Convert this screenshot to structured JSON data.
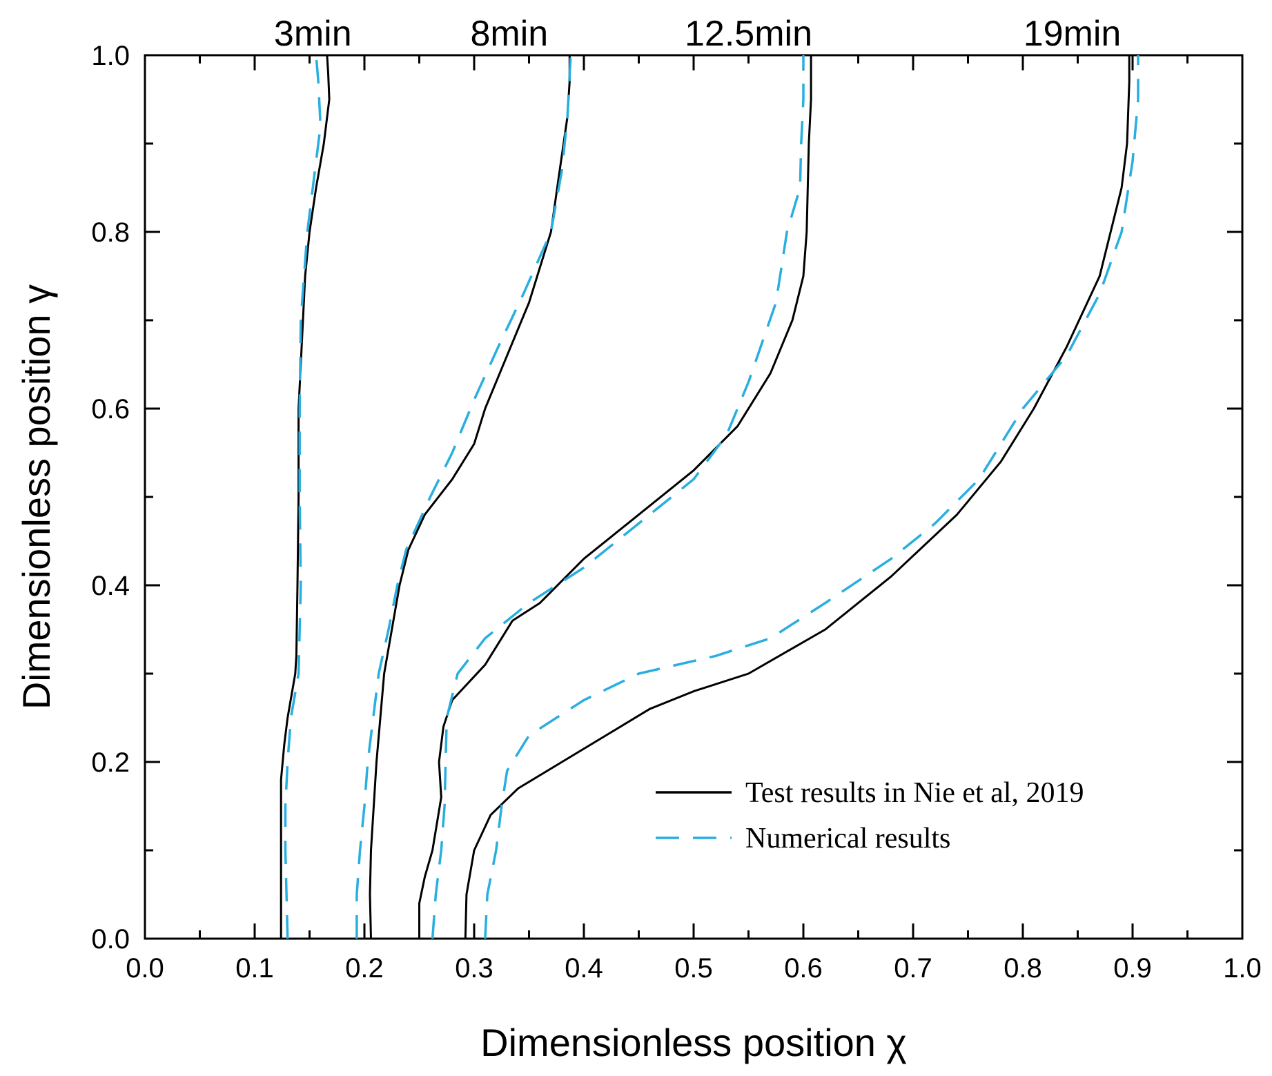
{
  "chart_data": {
    "type": "line",
    "xlabel": "Dimensionless position χ",
    "ylabel": "Dimensionless position γ",
    "xlim": [
      0.0,
      1.0
    ],
    "ylim": [
      0.0,
      1.0
    ],
    "xticks": [
      "0.0",
      "0.1",
      "0.2",
      "0.3",
      "0.4",
      "0.5",
      "0.6",
      "0.7",
      "0.8",
      "0.9",
      "1.0"
    ],
    "yticks": [
      "0.0",
      "0.2",
      "0.4",
      "0.6",
      "0.8",
      "1.0"
    ],
    "grid": false,
    "legend_position": "bottom-right",
    "legend": [
      {
        "label": "Test results in Nie et al, 2019",
        "color": "#000000",
        "style": "solid"
      },
      {
        "label": "Numerical results",
        "color": "#29aee0",
        "style": "dashed"
      }
    ],
    "time_labels": [
      {
        "text": "3min",
        "x": 0.153
      },
      {
        "text": "8min",
        "x": 0.332
      },
      {
        "text": "12.5min",
        "x": 0.55
      },
      {
        "text": "19min",
        "x": 0.845
      }
    ],
    "series": [
      {
        "group": "Test results in Nie et al, 2019",
        "time": "3min",
        "color": "#000000",
        "style": "solid",
        "points": [
          [
            0.124,
            0.0
          ],
          [
            0.124,
            0.1
          ],
          [
            0.124,
            0.18
          ],
          [
            0.127,
            0.22
          ],
          [
            0.13,
            0.25
          ],
          [
            0.137,
            0.3
          ],
          [
            0.138,
            0.32
          ],
          [
            0.139,
            0.4
          ],
          [
            0.14,
            0.5
          ],
          [
            0.14,
            0.6
          ],
          [
            0.142,
            0.65
          ],
          [
            0.146,
            0.75
          ],
          [
            0.15,
            0.8
          ],
          [
            0.156,
            0.85
          ],
          [
            0.163,
            0.9
          ],
          [
            0.168,
            0.95
          ],
          [
            0.167,
            0.98
          ],
          [
            0.166,
            1.0
          ]
        ]
      },
      {
        "group": "Numerical results",
        "time": "3min",
        "color": "#29aee0",
        "style": "dashed",
        "points": [
          [
            0.13,
            0.0
          ],
          [
            0.129,
            0.05
          ],
          [
            0.128,
            0.1
          ],
          [
            0.128,
            0.15
          ],
          [
            0.13,
            0.2
          ],
          [
            0.133,
            0.25
          ],
          [
            0.14,
            0.3
          ],
          [
            0.142,
            0.4
          ],
          [
            0.141,
            0.5
          ],
          [
            0.141,
            0.6
          ],
          [
            0.142,
            0.7
          ],
          [
            0.145,
            0.75
          ],
          [
            0.148,
            0.8
          ],
          [
            0.155,
            0.87
          ],
          [
            0.16,
            0.92
          ],
          [
            0.158,
            0.97
          ],
          [
            0.156,
            1.0
          ]
        ]
      },
      {
        "group": "Test results in Nie et al, 2019",
        "time": "8min",
        "color": "#000000",
        "style": "solid",
        "points": [
          [
            0.206,
            0.0
          ],
          [
            0.205,
            0.05
          ],
          [
            0.206,
            0.1
          ],
          [
            0.211,
            0.2
          ],
          [
            0.218,
            0.3
          ],
          [
            0.232,
            0.4
          ],
          [
            0.24,
            0.44
          ],
          [
            0.255,
            0.48
          ],
          [
            0.28,
            0.52
          ],
          [
            0.3,
            0.56
          ],
          [
            0.31,
            0.6
          ],
          [
            0.33,
            0.66
          ],
          [
            0.35,
            0.72
          ],
          [
            0.37,
            0.8
          ],
          [
            0.378,
            0.87
          ],
          [
            0.385,
            0.93
          ],
          [
            0.387,
            0.97
          ],
          [
            0.387,
            1.0
          ]
        ]
      },
      {
        "group": "Numerical results",
        "time": "8min",
        "color": "#29aee0",
        "style": "dashed",
        "points": [
          [
            0.193,
            0.0
          ],
          [
            0.193,
            0.05
          ],
          [
            0.196,
            0.1
          ],
          [
            0.2,
            0.15
          ],
          [
            0.203,
            0.2
          ],
          [
            0.213,
            0.3
          ],
          [
            0.222,
            0.35
          ],
          [
            0.23,
            0.4
          ],
          [
            0.238,
            0.44
          ],
          [
            0.26,
            0.5
          ],
          [
            0.28,
            0.55
          ],
          [
            0.3,
            0.61
          ],
          [
            0.322,
            0.67
          ],
          [
            0.345,
            0.73
          ],
          [
            0.37,
            0.8
          ],
          [
            0.38,
            0.87
          ],
          [
            0.385,
            0.93
          ],
          [
            0.388,
            1.0
          ]
        ]
      },
      {
        "group": "Test results in Nie et al, 2019",
        "time": "12.5min",
        "color": "#000000",
        "style": "solid",
        "points": [
          [
            0.25,
            0.0
          ],
          [
            0.25,
            0.04
          ],
          [
            0.255,
            0.07
          ],
          [
            0.262,
            0.1
          ],
          [
            0.27,
            0.16
          ],
          [
            0.268,
            0.2
          ],
          [
            0.272,
            0.24
          ],
          [
            0.28,
            0.27
          ],
          [
            0.31,
            0.31
          ],
          [
            0.335,
            0.36
          ],
          [
            0.36,
            0.38
          ],
          [
            0.4,
            0.43
          ],
          [
            0.44,
            0.47
          ],
          [
            0.5,
            0.53
          ],
          [
            0.54,
            0.58
          ],
          [
            0.57,
            0.64
          ],
          [
            0.59,
            0.7
          ],
          [
            0.6,
            0.75
          ],
          [
            0.603,
            0.8
          ],
          [
            0.605,
            0.9
          ],
          [
            0.607,
            0.95
          ],
          [
            0.607,
            1.0
          ]
        ]
      },
      {
        "group": "Numerical results",
        "time": "12.5min",
        "color": "#29aee0",
        "style": "dashed",
        "points": [
          [
            0.262,
            0.0
          ],
          [
            0.265,
            0.05
          ],
          [
            0.27,
            0.1
          ],
          [
            0.273,
            0.15
          ],
          [
            0.274,
            0.2
          ],
          [
            0.275,
            0.25
          ],
          [
            0.285,
            0.3
          ],
          [
            0.31,
            0.34
          ],
          [
            0.35,
            0.38
          ],
          [
            0.4,
            0.42
          ],
          [
            0.45,
            0.47
          ],
          [
            0.5,
            0.52
          ],
          [
            0.53,
            0.57
          ],
          [
            0.55,
            0.63
          ],
          [
            0.575,
            0.72
          ],
          [
            0.585,
            0.8
          ],
          [
            0.597,
            0.85
          ],
          [
            0.598,
            0.9
          ],
          [
            0.6,
            0.95
          ],
          [
            0.6,
            1.0
          ]
        ]
      },
      {
        "group": "Test results in Nie et al, 2019",
        "time": "19min",
        "color": "#000000",
        "style": "solid",
        "points": [
          [
            0.292,
            0.0
          ],
          [
            0.293,
            0.05
          ],
          [
            0.3,
            0.1
          ],
          [
            0.315,
            0.14
          ],
          [
            0.34,
            0.17
          ],
          [
            0.38,
            0.2
          ],
          [
            0.42,
            0.23
          ],
          [
            0.46,
            0.26
          ],
          [
            0.5,
            0.28
          ],
          [
            0.55,
            0.3
          ],
          [
            0.62,
            0.35
          ],
          [
            0.68,
            0.41
          ],
          [
            0.74,
            0.48
          ],
          [
            0.78,
            0.54
          ],
          [
            0.81,
            0.6
          ],
          [
            0.84,
            0.67
          ],
          [
            0.87,
            0.75
          ],
          [
            0.89,
            0.85
          ],
          [
            0.895,
            0.9
          ],
          [
            0.897,
            0.97
          ],
          [
            0.897,
            1.0
          ]
        ]
      },
      {
        "group": "Numerical results",
        "time": "19min",
        "color": "#29aee0",
        "style": "dashed",
        "points": [
          [
            0.31,
            0.0
          ],
          [
            0.312,
            0.05
          ],
          [
            0.32,
            0.1
          ],
          [
            0.325,
            0.15
          ],
          [
            0.33,
            0.19
          ],
          [
            0.35,
            0.23
          ],
          [
            0.4,
            0.27
          ],
          [
            0.45,
            0.3
          ],
          [
            0.52,
            0.32
          ],
          [
            0.57,
            0.34
          ],
          [
            0.62,
            0.38
          ],
          [
            0.68,
            0.43
          ],
          [
            0.72,
            0.47
          ],
          [
            0.76,
            0.52
          ],
          [
            0.8,
            0.6
          ],
          [
            0.84,
            0.66
          ],
          [
            0.87,
            0.73
          ],
          [
            0.89,
            0.8
          ],
          [
            0.9,
            0.88
          ],
          [
            0.905,
            0.95
          ],
          [
            0.905,
            1.0
          ]
        ]
      }
    ]
  }
}
